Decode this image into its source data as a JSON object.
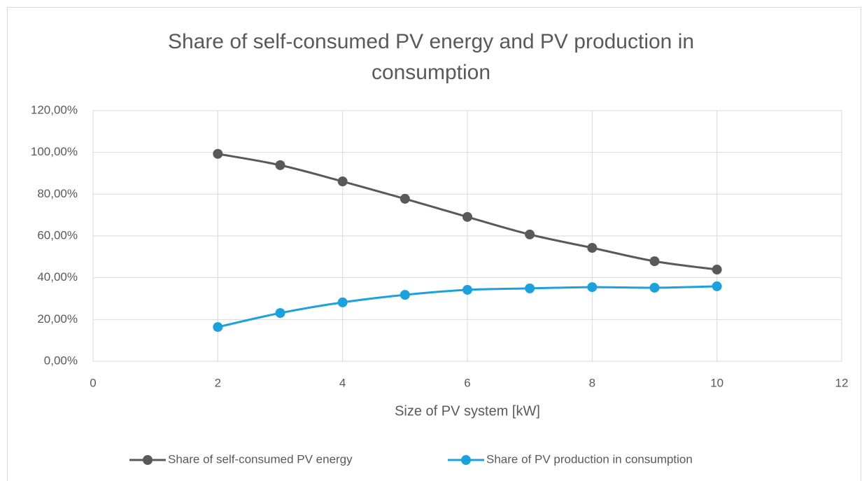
{
  "chart_data": {
    "type": "line",
    "title": "Share of self-consumed PV energy and PV production in consumption",
    "x_label": "Size of PV system [kW]",
    "x": [
      2,
      3,
      4,
      5,
      6,
      7,
      8,
      9,
      10
    ],
    "series": [
      {
        "name": "Share of self-consumed PV energy",
        "color": "#595959",
        "values": [
          99.3,
          93.9,
          86.1,
          77.8,
          69.1,
          60.7,
          54.3,
          47.9,
          43.9
        ]
      },
      {
        "name": "Share of PV production in consumption",
        "color": "#1ca1dd",
        "values": [
          16.4,
          23.1,
          28.2,
          31.8,
          34.2,
          34.9,
          35.5,
          35.2,
          35.9
        ]
      }
    ],
    "xlim": [
      0,
      12
    ],
    "xticks": [
      0,
      2,
      4,
      6,
      8,
      10,
      12
    ],
    "ylim": [
      0,
      120
    ],
    "yticks": [
      {
        "value": 0,
        "label": "0,00%"
      },
      {
        "value": 20,
        "label": "20,00%"
      },
      {
        "value": 40,
        "label": "40,00%"
      },
      {
        "value": 60,
        "label": "60,00%"
      },
      {
        "value": 80,
        "label": "80,00%"
      },
      {
        "value": 100,
        "label": "100,00%"
      },
      {
        "value": 120,
        "label": "120,00%"
      }
    ],
    "grid": true,
    "smooth": true,
    "legend": "bottom"
  }
}
